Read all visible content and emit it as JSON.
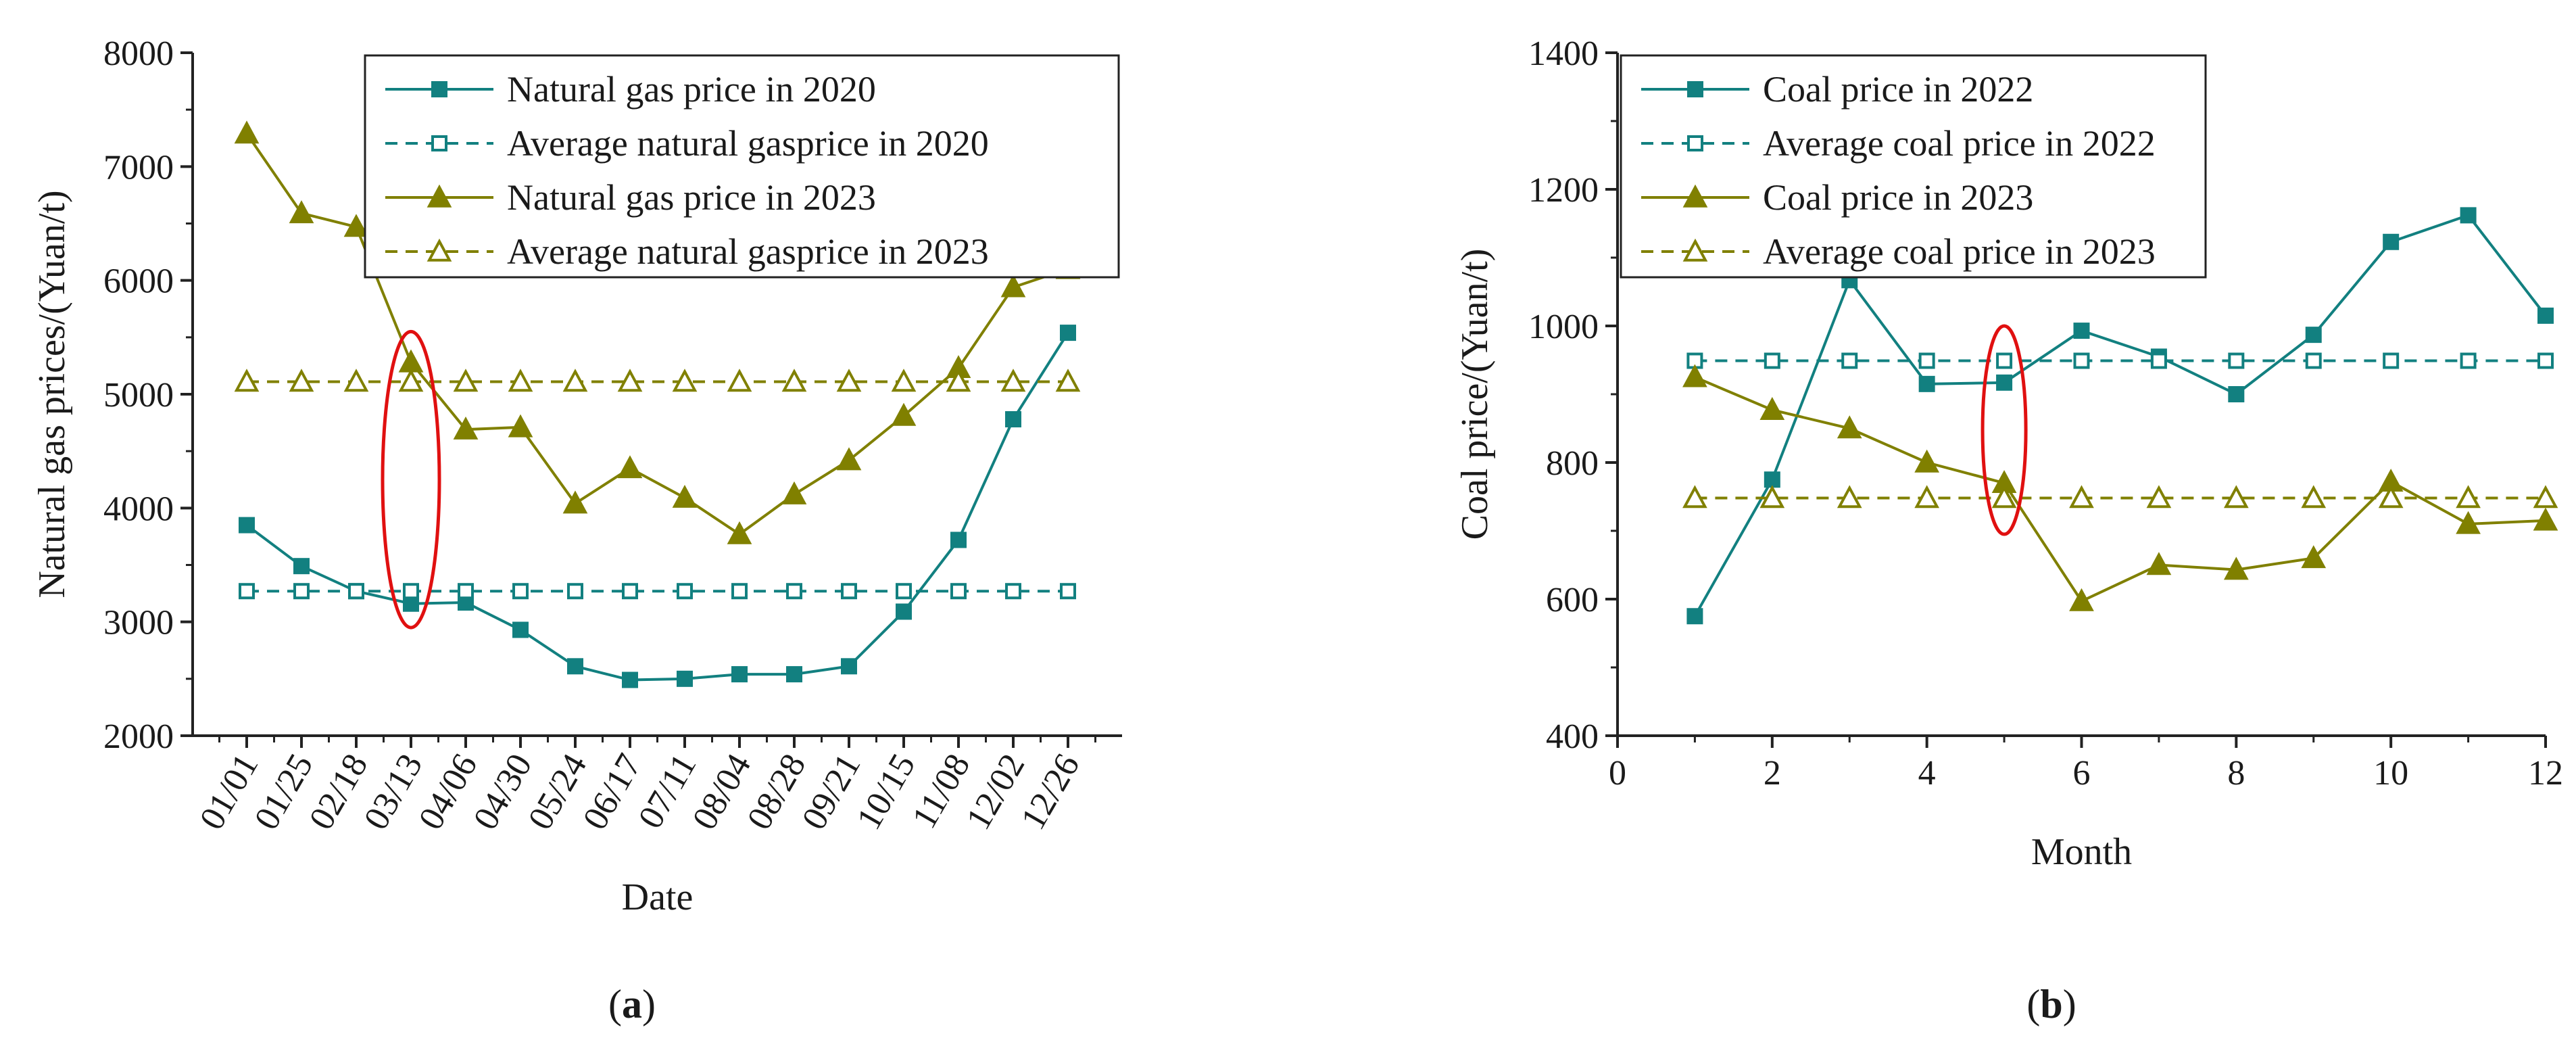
{
  "colors": {
    "teal": "#128080",
    "olive": "#808000",
    "red": "#e01010",
    "axis": "#222222"
  },
  "captions": {
    "a_prefix": "(",
    "a_letter": "a",
    "a_suffix": ")",
    "b_prefix": "(",
    "b_letter": "b",
    "b_suffix": ")"
  },
  "chart_data": [
    {
      "type": "line",
      "xlabel": "Date",
      "ylabel": "Natural gas prices/(Yuan/t)",
      "ylim": [
        2000,
        8000
      ],
      "yticks": [
        2000,
        3000,
        4000,
        5000,
        6000,
        7000,
        8000
      ],
      "categories": [
        "01/01",
        "01/25",
        "02/18",
        "03/13",
        "04/06",
        "04/30",
        "05/24",
        "06/17",
        "07/11",
        "08/04",
        "08/28",
        "09/21",
        "10/15",
        "11/08",
        "12/02",
        "12/26"
      ],
      "legend_position": "top-right",
      "series": [
        {
          "name": "Natural gas price in 2020",
          "color": "teal",
          "dashed": false,
          "marker": "square-filled",
          "values": [
            3850,
            3490,
            3270,
            3160,
            3170,
            2930,
            2610,
            2490,
            2500,
            2540,
            2540,
            2610,
            3090,
            3720,
            4780,
            5540
          ]
        },
        {
          "name": "Average natural gasprice in 2020",
          "color": "teal",
          "dashed": true,
          "marker": "square-open",
          "values": [
            3270,
            3270,
            3270,
            3270,
            3270,
            3270,
            3270,
            3270,
            3270,
            3270,
            3270,
            3270,
            3270,
            3270,
            3270,
            3270
          ]
        },
        {
          "name": "Natural gas price in 2023",
          "color": "olive",
          "dashed": false,
          "marker": "triangle-filled",
          "values": [
            7290,
            6590,
            6470,
            5280,
            4690,
            4710,
            4040,
            4350,
            4090,
            3770,
            4120,
            4420,
            4810,
            5230,
            5940,
            6100
          ]
        },
        {
          "name": "Average natural gasprice in 2023",
          "color": "olive",
          "dashed": true,
          "marker": "triangle-open",
          "values": [
            5110,
            5110,
            5110,
            5110,
            5110,
            5110,
            5110,
            5110,
            5110,
            5110,
            5110,
            5110,
            5110,
            5110,
            5110,
            5110
          ]
        }
      ],
      "annotation": {
        "shape": "ellipse",
        "color": "red",
        "category": "03/13",
        "y_range": [
          2950,
          5550
        ]
      }
    },
    {
      "type": "line",
      "xlabel": "Month",
      "ylabel": "Coal price/(Yuan/t)",
      "xlim": [
        0,
        12
      ],
      "xticks": [
        0,
        2,
        4,
        6,
        8,
        10,
        12
      ],
      "ylim": [
        400,
        1400
      ],
      "yticks": [
        400,
        600,
        800,
        1000,
        1200,
        1400
      ],
      "x": [
        1,
        2,
        3,
        4,
        5,
        6,
        7,
        8,
        9,
        10,
        11,
        12
      ],
      "legend_position": "top-left",
      "series": [
        {
          "name": "Coal price in 2022",
          "color": "teal",
          "dashed": false,
          "marker": "square-filled",
          "values": [
            575,
            775,
            1067,
            915,
            917,
            993,
            955,
            900,
            987,
            1123,
            1162,
            1015
          ]
        },
        {
          "name": "Average coal price in 2022",
          "color": "teal",
          "dashed": true,
          "marker": "square-open",
          "values": [
            949,
            949,
            949,
            949,
            949,
            949,
            949,
            949,
            949,
            949,
            949,
            949
          ]
        },
        {
          "name": "Coal price in 2023",
          "color": "olive",
          "dashed": false,
          "marker": "triangle-filled",
          "values": [
            925,
            877,
            850,
            800,
            770,
            597,
            650,
            643,
            660,
            772,
            710,
            715
          ]
        },
        {
          "name": "Average coal price in 2023",
          "color": "olive",
          "dashed": true,
          "marker": "triangle-open",
          "values": [
            748,
            748,
            748,
            748,
            748,
            748,
            748,
            748,
            748,
            748,
            748,
            748
          ]
        }
      ],
      "annotation": {
        "shape": "ellipse",
        "color": "red",
        "x": 5,
        "y_range": [
          695,
          1000
        ]
      }
    }
  ]
}
